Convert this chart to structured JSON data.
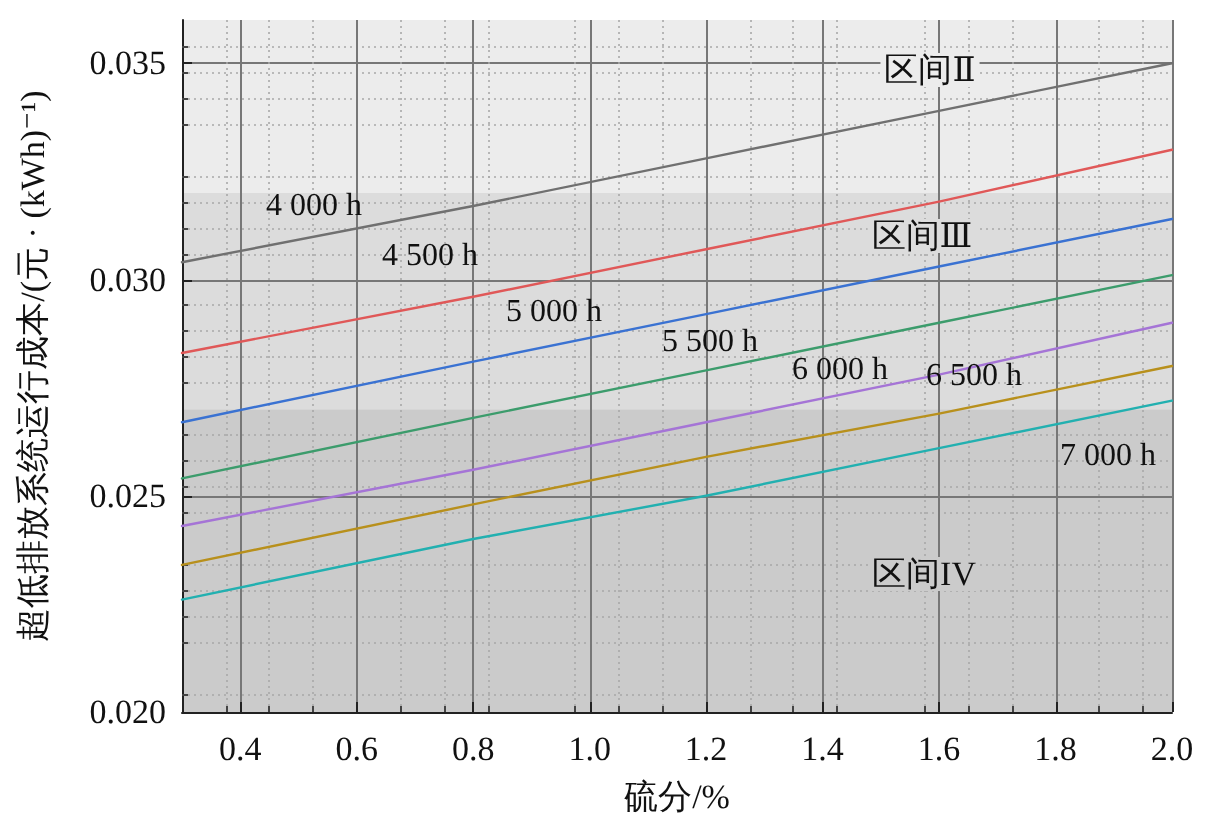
{
  "chart_data": {
    "type": "line",
    "xlabel": "硫分/%",
    "ylabel": "超低排放系统运行成本/(元 · (kWh)⁻¹)",
    "x": [
      0.3,
      0.8,
      1.2,
      1.6,
      2.0
    ],
    "series": [
      {
        "name": "4 000 h",
        "color": "#707070",
        "values": [
          0.0304,
          0.0317,
          0.0328,
          0.0339,
          0.035
        ]
      },
      {
        "name": "4 500 h",
        "color": "#e05858",
        "values": [
          0.0283,
          0.0296,
          0.0307,
          0.0318,
          0.033
        ]
      },
      {
        "name": "5 000 h",
        "color": "#3a72d2",
        "values": [
          0.0267,
          0.0281,
          0.0292,
          0.0303,
          0.0314
        ]
      },
      {
        "name": "5 500 h",
        "color": "#3c9c6c",
        "values": [
          0.0254,
          0.0268,
          0.0279,
          0.029,
          0.0301
        ]
      },
      {
        "name": "6 000 h",
        "color": "#a574d6",
        "values": [
          0.0243,
          0.0256,
          0.0267,
          0.0278,
          0.029
        ]
      },
      {
        "name": "6 500 h",
        "color": "#b8901c",
        "values": [
          0.0234,
          0.0248,
          0.0259,
          0.0269,
          0.028
        ]
      },
      {
        "name": "7 000 h",
        "color": "#22b0b0",
        "values": [
          0.0226,
          0.024,
          0.025,
          0.0261,
          0.0272
        ]
      }
    ],
    "bands": [
      {
        "axis": "y",
        "from": 0.032,
        "to": 0.036,
        "label": "区间Ⅱ",
        "color": "#ececec"
      },
      {
        "axis": "y",
        "from": 0.027,
        "to": 0.032,
        "label": "区间Ⅲ",
        "color": "#dcdcdc"
      },
      {
        "axis": "y",
        "from": 0.02,
        "to": 0.027,
        "label": "区间IV",
        "color": "#cbcbcb"
      }
    ],
    "xlim": [
      0.3,
      2.0
    ],
    "ylim": [
      0.02,
      0.036
    ],
    "xticks": [
      0.4,
      0.6,
      0.8,
      {
        "value": 1.0,
        "label": "1.0"
      },
      1.2,
      1.4,
      1.6,
      1.8,
      {
        "value": 2.0,
        "label": "2.0"
      }
    ],
    "yticks": [
      {
        "value": 0.02,
        "label": "0.020"
      },
      {
        "value": 0.025,
        "label": "0.025"
      },
      {
        "value": 0.03,
        "label": "0.030"
      },
      {
        "value": 0.035,
        "label": "0.035"
      }
    ],
    "grid": true,
    "legend": false,
    "marker": "none",
    "line_style": "solid"
  }
}
